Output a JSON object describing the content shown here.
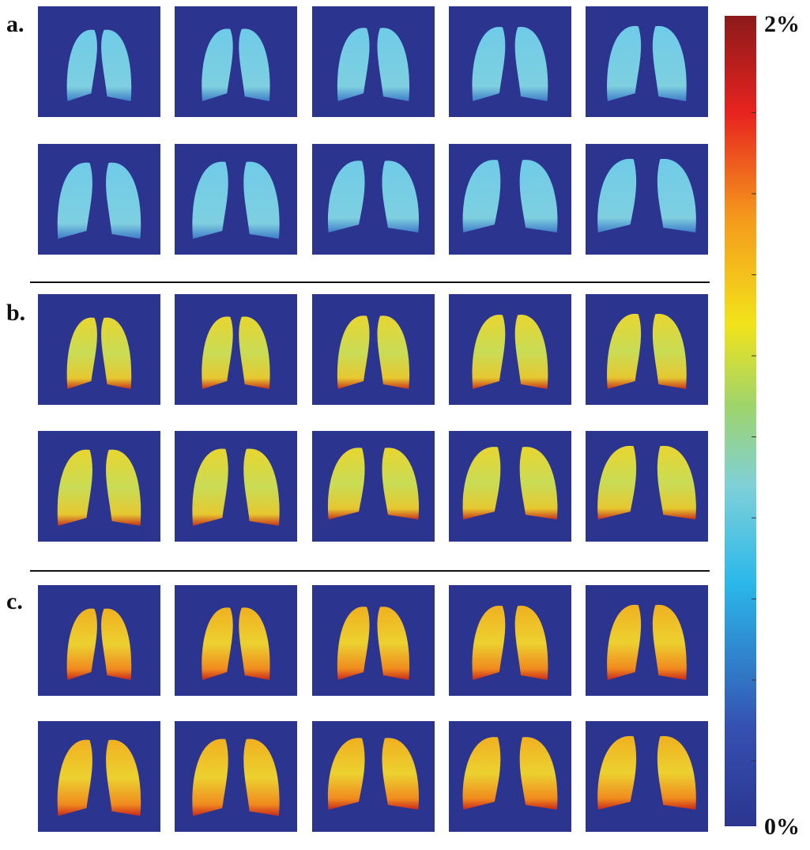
{
  "panels": [
    {
      "label": "a."
    },
    {
      "label": "b."
    },
    {
      "label": "c."
    }
  ],
  "colorbar": {
    "max_label": "2%",
    "min_label": "0%"
  }
}
